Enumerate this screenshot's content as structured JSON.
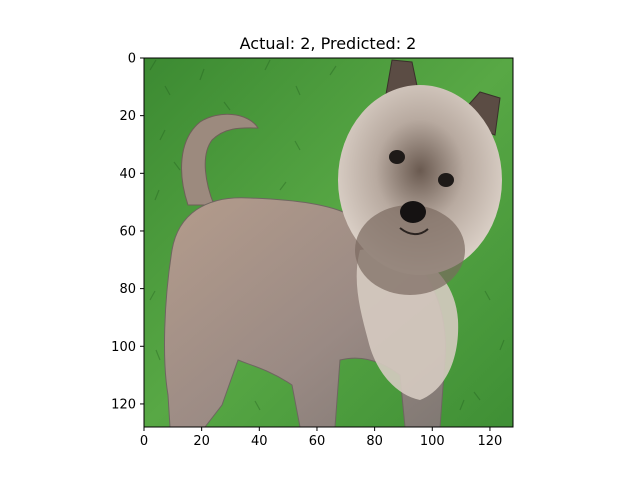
{
  "chart_data": {
    "type": "image",
    "title": "Actual: 2, Predicted: 2",
    "image_subject": "small terrier dog standing on grass",
    "image_size": [
      128,
      128
    ],
    "xlim": [
      0,
      128
    ],
    "ylim": [
      128,
      0
    ],
    "xticks": [
      0,
      20,
      40,
      60,
      80,
      100,
      120
    ],
    "yticks": [
      0,
      20,
      40,
      60,
      80,
      100,
      120
    ],
    "xtick_labels": [
      "0",
      "20",
      "40",
      "60",
      "80",
      "100",
      "120"
    ],
    "ytick_labels": [
      "0",
      "20",
      "40",
      "60",
      "80",
      "100",
      "120"
    ],
    "colors": {
      "grass_dark": "#2f7a2a",
      "grass_light": "#5fae4a",
      "dog_coat": "#a89488",
      "dog_face": "#d8cdc2",
      "dog_dark": "#4a3f3a"
    }
  }
}
